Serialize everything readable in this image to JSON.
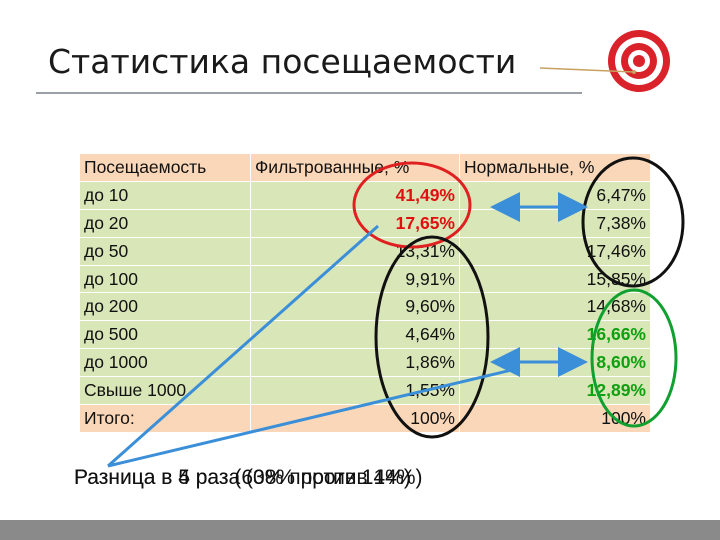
{
  "slide": {
    "title": "Статистика посещаемости"
  },
  "table": {
    "headers": [
      "Посещаемость",
      "Фильтрованные, %",
      "Нормальные, %"
    ],
    "rows": [
      {
        "label": "до 10",
        "filtered": "41,49%",
        "normal": "6,47%"
      },
      {
        "label": "до 20",
        "filtered": "17,65%",
        "normal": "7,38%"
      },
      {
        "label": "до 50",
        "filtered": "13,31%",
        "normal": "17,46%"
      },
      {
        "label": "до 100",
        "filtered": "9,91%",
        "normal": "15,85%"
      },
      {
        "label": "до 200",
        "filtered": "9,60%",
        "normal": "14,68%"
      },
      {
        "label": "до 500",
        "filtered": "4,64%",
        "normal": "16,66%"
      },
      {
        "label": "до 1000",
        "filtered": "1,86%",
        "normal": "8,60%"
      },
      {
        "label": "Свыше 1000",
        "filtered": "1,55%",
        "normal": "12,89%"
      }
    ],
    "total": {
      "label": "Итого:",
      "filtered": "100%",
      "normal": "100%"
    }
  },
  "captions": {
    "first": "Разница в 5 раз (60% против 14%)",
    "second": "Разница в 4 раза (38% против 14%)"
  },
  "colors": {
    "highlight_red": "#e01010",
    "highlight_green": "#10a010",
    "target_red": "#d9222a"
  }
}
